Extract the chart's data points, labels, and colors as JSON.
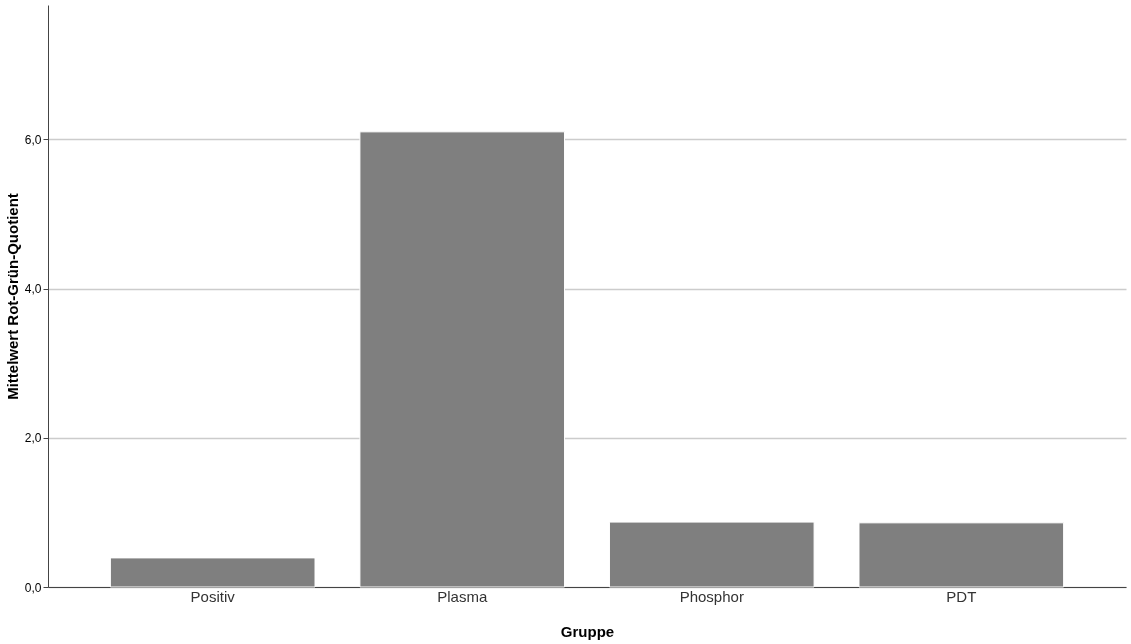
{
  "chart_data": {
    "type": "bar",
    "xlabel": "Gruppe",
    "ylabel": "Mittelwert Rot-Grün-Quotient",
    "categories": [
      "Positiv",
      "Plasma",
      "Phosphor",
      "PDT"
    ],
    "values": [
      0.39,
      6.1,
      0.87,
      0.86
    ],
    "color": "#7f7f7f",
    "ylim": [
      0,
      7.8
    ],
    "yticks": [
      {
        "value": 0,
        "label": "0,0"
      },
      {
        "value": 2,
        "label": "2,0"
      },
      {
        "value": 4,
        "label": "4,0"
      },
      {
        "value": 6,
        "label": "6,0"
      }
    ],
    "grid": "y"
  }
}
